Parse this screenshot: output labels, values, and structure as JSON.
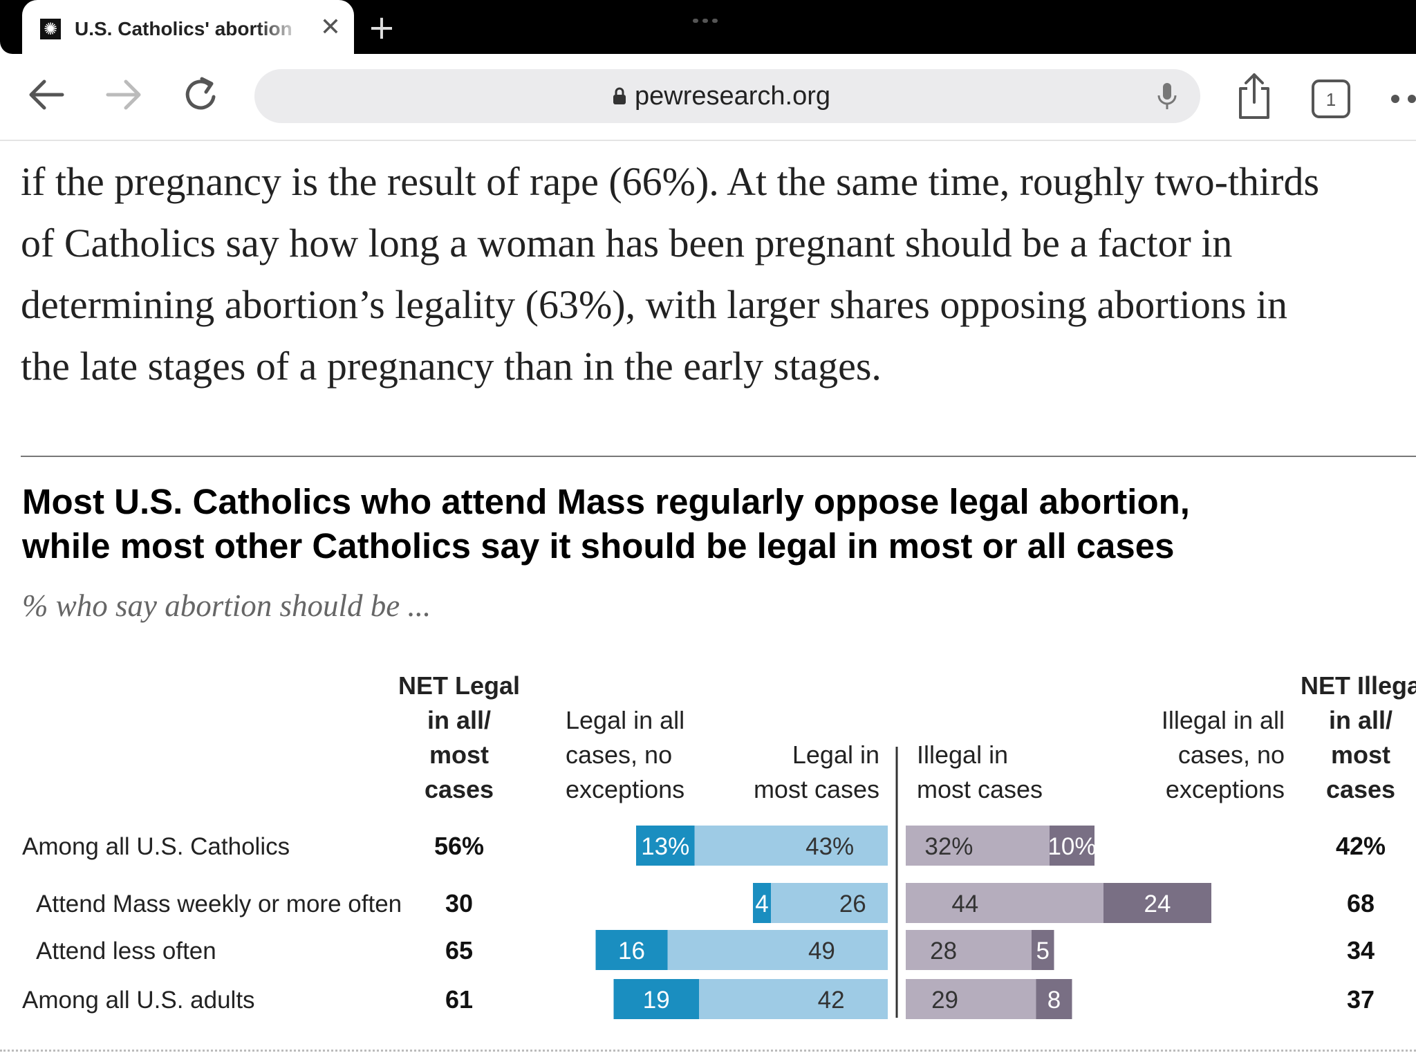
{
  "browser": {
    "tab_title": "U.S. Catholics' abortion",
    "tab_close_glyph": "✕",
    "new_tab_glyph": "+",
    "url": "pewresearch.org",
    "tab_count": "1",
    "icons": [
      "favicon-icon",
      "back-icon",
      "forward-icon",
      "reload-icon",
      "lock-icon",
      "microphone-icon",
      "share-icon",
      "tabs-icon",
      "more-icon"
    ]
  },
  "article": {
    "lines": [
      "if the pregnancy is the result of rape (66%). At the same time, roughly two-thirds",
      "of Catholics say how long a woman has been pregnant should be a factor in",
      "determining abortion’s legality (63%), with larger shares opposing abortions in",
      "the late stages of a pregnancy than in the early stages."
    ]
  },
  "chart_data": {
    "type": "bar",
    "title": "Most U.S. Catholics who attend Mass regularly oppose legal abortion, while most other Catholics say it should be legal in most or all cases",
    "title_lines": [
      "Most U.S. Catholics who attend Mass regularly oppose legal abortion,",
      "while most other Catholics say it should be legal in most or all cases"
    ],
    "subtitle": "% who say abortion should be ...",
    "column_headers": {
      "net_legal": [
        "NET Legal",
        "in all/",
        "most",
        "cases"
      ],
      "legal_all": [
        "Legal in all",
        "cases, no",
        "exceptions"
      ],
      "legal_most": [
        "Legal in",
        "most cases"
      ],
      "illegal_most": [
        "Illegal in",
        "most cases"
      ],
      "illegal_all": [
        "Illegal in all",
        "cases, no",
        "exceptions"
      ],
      "net_illegal": [
        "NET Illega",
        "in all/",
        "most",
        "cases"
      ]
    },
    "categories": [
      "Among all U.S. Catholics",
      "Attend Mass weekly or more often",
      "Attend less often",
      "Among all U.S. adults"
    ],
    "indent": [
      false,
      true,
      true,
      false
    ],
    "series": [
      {
        "name": "Legal in all cases, no exceptions",
        "values": [
          13,
          4,
          16,
          19
        ],
        "labels": [
          "13%",
          "4",
          "16",
          "19"
        ],
        "color": "#1a8ec0"
      },
      {
        "name": "Legal in most cases",
        "values": [
          43,
          26,
          49,
          42
        ],
        "labels": [
          "43%",
          "26",
          "49",
          "42"
        ],
        "color": "#9ecbe5"
      },
      {
        "name": "Illegal in most cases",
        "values": [
          32,
          44,
          28,
          29
        ],
        "labels": [
          "32%",
          "44",
          "28",
          "29"
        ],
        "color": "#b5adbd"
      },
      {
        "name": "Illegal in all cases, no exceptions",
        "values": [
          10,
          24,
          5,
          8
        ],
        "labels": [
          "10%",
          "24",
          "5",
          "8"
        ],
        "color": "#796f84"
      }
    ],
    "net_legal": [
      "56%",
      "30",
      "65",
      "61"
    ],
    "net_illegal": [
      "42%",
      "68",
      "34",
      "37"
    ],
    "colors": {
      "legal_dark": "#1a8ec0",
      "legal_light": "#9ecbe5",
      "illegal_light": "#b5adbd",
      "illegal_dark": "#796f84"
    }
  }
}
